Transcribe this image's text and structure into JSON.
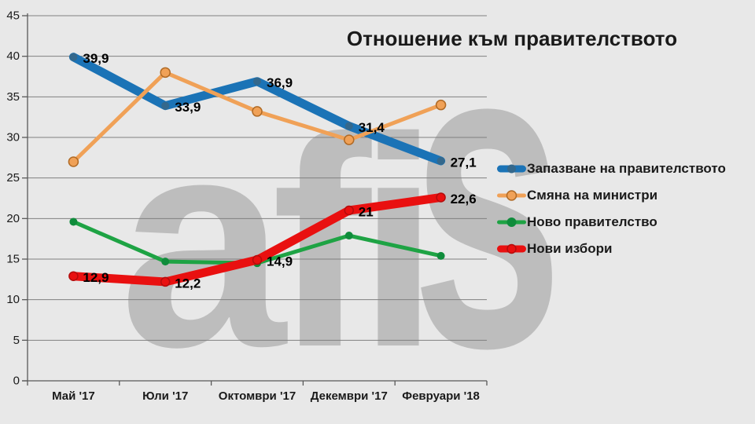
{
  "chart_data": {
    "type": "line",
    "title": "Отношение към правителството",
    "watermark": "afis",
    "categories": [
      "Май '17",
      "Юли '17",
      "Октомври '17",
      "Декември '17",
      "Февруари '18"
    ],
    "y_ticks": [
      "0",
      "5",
      "10",
      "15",
      "20",
      "25",
      "30",
      "35",
      "40",
      "45"
    ],
    "y_axis": {
      "min": 0,
      "max": 45,
      "step": 5
    },
    "legend_position": "right",
    "grid": "horizontal",
    "series": [
      {
        "name": "Запазване на правителството",
        "color": "#1b73b6",
        "line_width": 11,
        "marker": {
          "radius": 5,
          "fill": "#34688c",
          "stroke": "none",
          "stroke_width": 0
        },
        "values": [
          39.9,
          33.9,
          36.9,
          31.4,
          27.1
        ],
        "labels": [
          "39,9",
          "33,9",
          "36,9",
          "31,4",
          "27,1"
        ]
      },
      {
        "name": "Смяна на министри",
        "color": "#f0a157",
        "line_width": 5,
        "marker": {
          "radius": 6,
          "fill": "#f0a157",
          "stroke": "#b06a25",
          "stroke_width": 1.5
        },
        "values": [
          27,
          38,
          33.2,
          29.7,
          34
        ],
        "labels": []
      },
      {
        "name": "Ново правителство",
        "color": "#1ea344",
        "line_width": 5,
        "marker": {
          "radius": 5,
          "fill": "#0f8c3b",
          "stroke": "none",
          "stroke_width": 0
        },
        "values": [
          19.6,
          14.7,
          14.5,
          17.9,
          15.4
        ],
        "labels": []
      },
      {
        "name": "Нови избори",
        "color": "#e91010",
        "line_width": 11,
        "marker": {
          "radius": 5.5,
          "fill": "#e91010",
          "stroke": "#b30c0c",
          "stroke_width": 1.5
        },
        "values": [
          12.9,
          12.2,
          14.9,
          21,
          22.6
        ],
        "labels": [
          "12,9",
          "12,2",
          "14,9",
          "21",
          "22,6"
        ]
      }
    ],
    "colors": {
      "background": "#e8e8e8",
      "watermark": "#bdbdbd",
      "gridline": "#808080",
      "axis": "#595959",
      "text": "#1a1a1a"
    }
  }
}
